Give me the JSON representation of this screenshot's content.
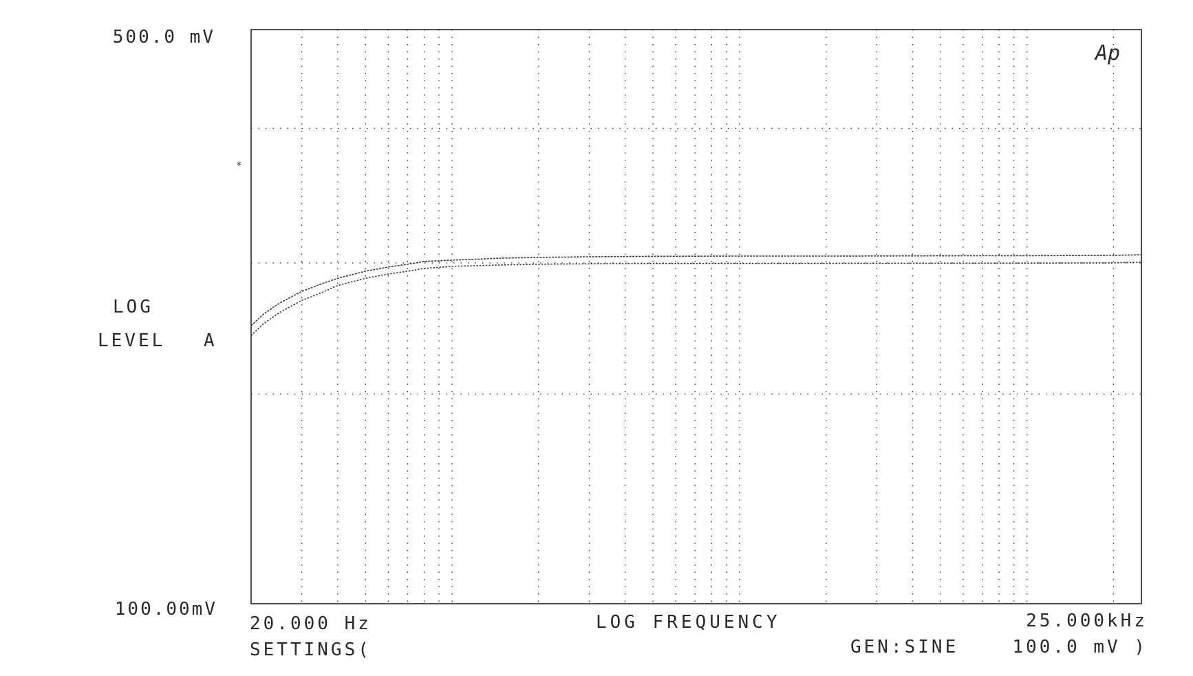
{
  "chart_data": {
    "type": "line",
    "title": "",
    "logo_text": "Ap",
    "xlabel": "LOG FREQUENCY",
    "ylabel_line1": "LOG",
    "ylabel_line2": "LEVEL",
    "ylabel_channel": "A",
    "x_scale": "log",
    "y_scale": "log",
    "xlim": [
      20,
      25000
    ],
    "ylim": [
      100,
      500
    ],
    "x_unit": "Hz",
    "y_unit": "mV",
    "x_tick_labels": {
      "min": "20.000 Hz",
      "max": "25.000kHz"
    },
    "y_tick_labels": {
      "max": "500.0 mV",
      "min": "100.00mV"
    },
    "settings_label": "SETTINGS(",
    "gen_label": "GEN:SINE",
    "gen_level": "100.0 mV )",
    "grid": true,
    "x_gridlines": [
      30,
      40,
      50,
      60,
      70,
      80,
      90,
      100,
      200,
      300,
      400,
      500,
      600,
      700,
      800,
      900,
      1000,
      2000,
      3000,
      4000,
      5000,
      6000,
      7000,
      8000,
      9000,
      10000,
      20000
    ],
    "y_gridlines": [
      180,
      260,
      379
    ],
    "series": [
      {
        "x": [
          20,
          22,
          25,
          30,
          35,
          40,
          50,
          60,
          70,
          80,
          100,
          150,
          200,
          300,
          500,
          1000,
          2000,
          5000,
          10000,
          20000,
          25000
        ],
        "y": [
          218,
          225,
          232,
          240,
          245,
          249,
          254,
          257,
          259,
          261,
          262,
          263.5,
          264,
          264.5,
          264.8,
          265,
          265,
          265.2,
          265.3,
          265.5,
          266
        ]
      },
      {
        "x": [
          20,
          22,
          25,
          30,
          35,
          40,
          50,
          60,
          70,
          80,
          100,
          150,
          200,
          300,
          500,
          1000,
          2000,
          5000,
          10000,
          20000,
          25000
        ],
        "y": [
          212,
          219,
          226,
          234,
          239,
          244,
          249,
          252,
          254,
          256,
          257.5,
          258.5,
          259,
          259.3,
          259.5,
          259.6,
          259.6,
          259.7,
          259.8,
          260,
          260.5
        ]
      }
    ]
  }
}
